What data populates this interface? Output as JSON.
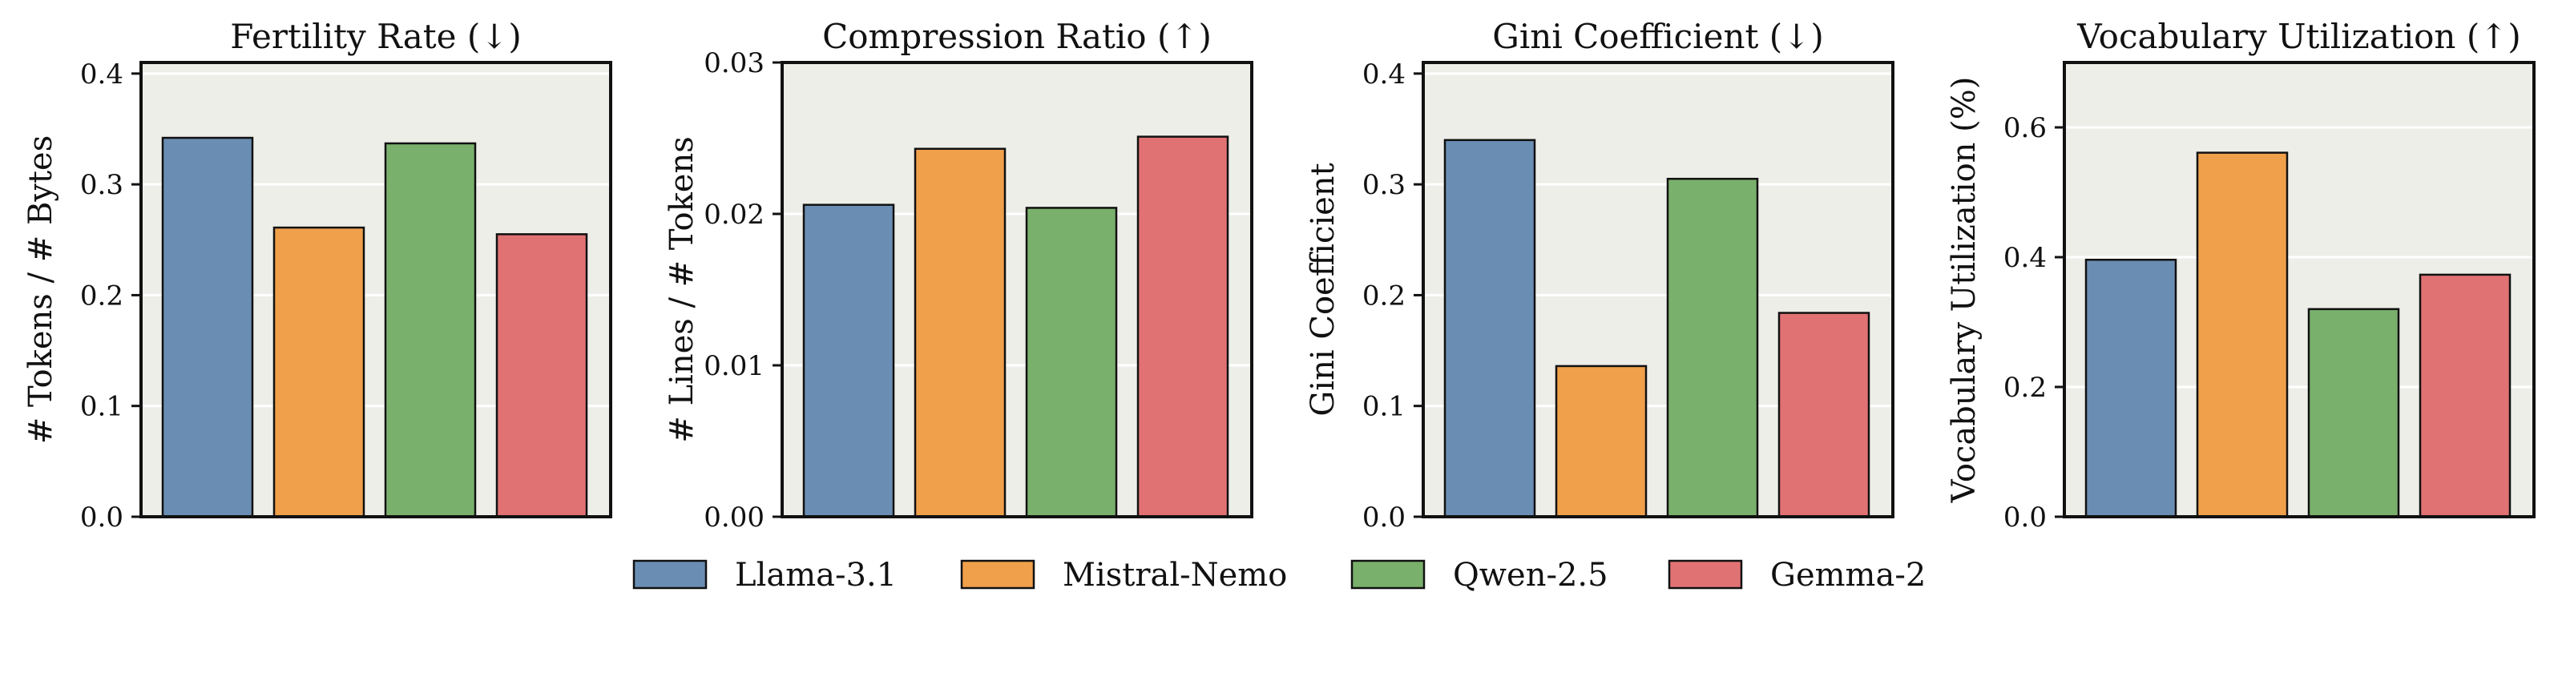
{
  "colors": {
    "Llama-3.1": "#6a8db3",
    "Mistral-Nemo": "#f0a04b",
    "Qwen-2.5": "#79b06b",
    "Gemma-2": "#e17274",
    "panel_bg": "#edeee8",
    "grid": "#ffffff"
  },
  "legend": {
    "items": [
      {
        "label": "Llama-3.1"
      },
      {
        "label": "Mistral-Nemo"
      },
      {
        "label": "Qwen-2.5"
      },
      {
        "label": "Gemma-2"
      }
    ]
  },
  "chart_data": [
    {
      "type": "bar",
      "title": "Fertility Rate (↓)",
      "xlabel": "",
      "ylabel": "# Tokens / # Bytes",
      "categories": [
        "Llama-3.1",
        "Mistral-Nemo",
        "Qwen-2.5",
        "Gemma-2"
      ],
      "values": [
        0.342,
        0.261,
        0.337,
        0.255
      ],
      "ylim": [
        0,
        0.41
      ],
      "yticks": [
        0.0,
        0.1,
        0.2,
        0.3,
        0.4
      ],
      "ytick_labels": [
        "0.0",
        "0.1",
        "0.2",
        "0.3",
        "0.4"
      ],
      "grid": true
    },
    {
      "type": "bar",
      "title": "Compression Ratio (↑)",
      "xlabel": "",
      "ylabel": "# Lines / # Tokens",
      "categories": [
        "Llama-3.1",
        "Mistral-Nemo",
        "Qwen-2.5",
        "Gemma-2"
      ],
      "values": [
        0.0206,
        0.0243,
        0.0204,
        0.0251
      ],
      "ylim": [
        0,
        0.03
      ],
      "yticks": [
        0.0,
        0.01,
        0.02,
        0.03
      ],
      "ytick_labels": [
        "0.00",
        "0.01",
        "0.02",
        "0.03"
      ],
      "grid": true
    },
    {
      "type": "bar",
      "title": "Gini Coefficient (↓)",
      "xlabel": "",
      "ylabel": "Gini Coefficient",
      "categories": [
        "Llama-3.1",
        "Mistral-Nemo",
        "Qwen-2.5",
        "Gemma-2"
      ],
      "values": [
        0.34,
        0.136,
        0.305,
        0.184
      ],
      "ylim": [
        0,
        0.41
      ],
      "yticks": [
        0.0,
        0.1,
        0.2,
        0.3,
        0.4
      ],
      "ytick_labels": [
        "0.0",
        "0.1",
        "0.2",
        "0.3",
        "0.4"
      ],
      "grid": true
    },
    {
      "type": "bar",
      "title": "Vocabulary Utilization (↑)",
      "xlabel": "",
      "ylabel": "Vocabulary Utilization (%)",
      "categories": [
        "Llama-3.1",
        "Mistral-Nemo",
        "Qwen-2.5",
        "Gemma-2"
      ],
      "values": [
        0.396,
        0.561,
        0.32,
        0.373
      ],
      "ylim": [
        0,
        0.7
      ],
      "yticks": [
        0.0,
        0.2,
        0.4,
        0.6
      ],
      "ytick_labels": [
        "0.0",
        "0.2",
        "0.4",
        "0.6"
      ],
      "grid": true
    }
  ]
}
